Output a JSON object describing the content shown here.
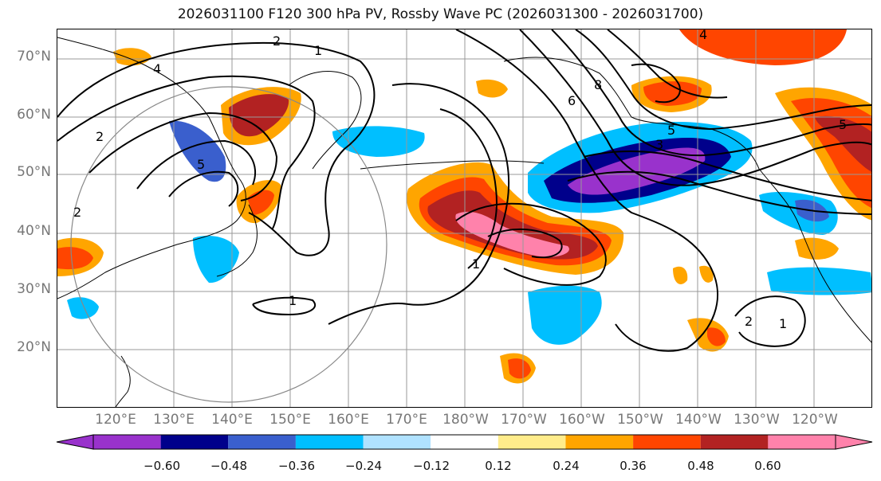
{
  "title": "2026031100 F120 300 hPa PV, Rossby Wave PC (2026031300 - 2026031700)",
  "map": {
    "lat_labels": [
      "70°N",
      "60°N",
      "50°N",
      "40°N",
      "30°N",
      "20°N"
    ],
    "lon_labels": [
      "120°E",
      "130°E",
      "140°E",
      "150°E",
      "160°E",
      "170°E",
      "180°W",
      "170°W",
      "160°W",
      "150°W",
      "140°W",
      "130°W",
      "120°W"
    ],
    "contour_labels": [
      "1",
      "1",
      "1",
      "2",
      "2",
      "2",
      "3",
      "4",
      "4",
      "5",
      "5",
      "6",
      "8",
      "5",
      "1",
      "2"
    ]
  },
  "colorbar": {
    "tick_labels": [
      "−0.60",
      "−0.48",
      "−0.36",
      "−0.24",
      "−0.12",
      "0.12",
      "0.24",
      "0.36",
      "0.48",
      "0.60"
    ],
    "colors": [
      "#9932CC",
      "#00008B",
      "#3A5FCD",
      "#00BFFF",
      "#B0E2FF",
      "#FFFFFF",
      "#FFEC8B",
      "#FFA500",
      "#FF4500",
      "#B22222",
      "#FF82AB"
    ]
  }
}
